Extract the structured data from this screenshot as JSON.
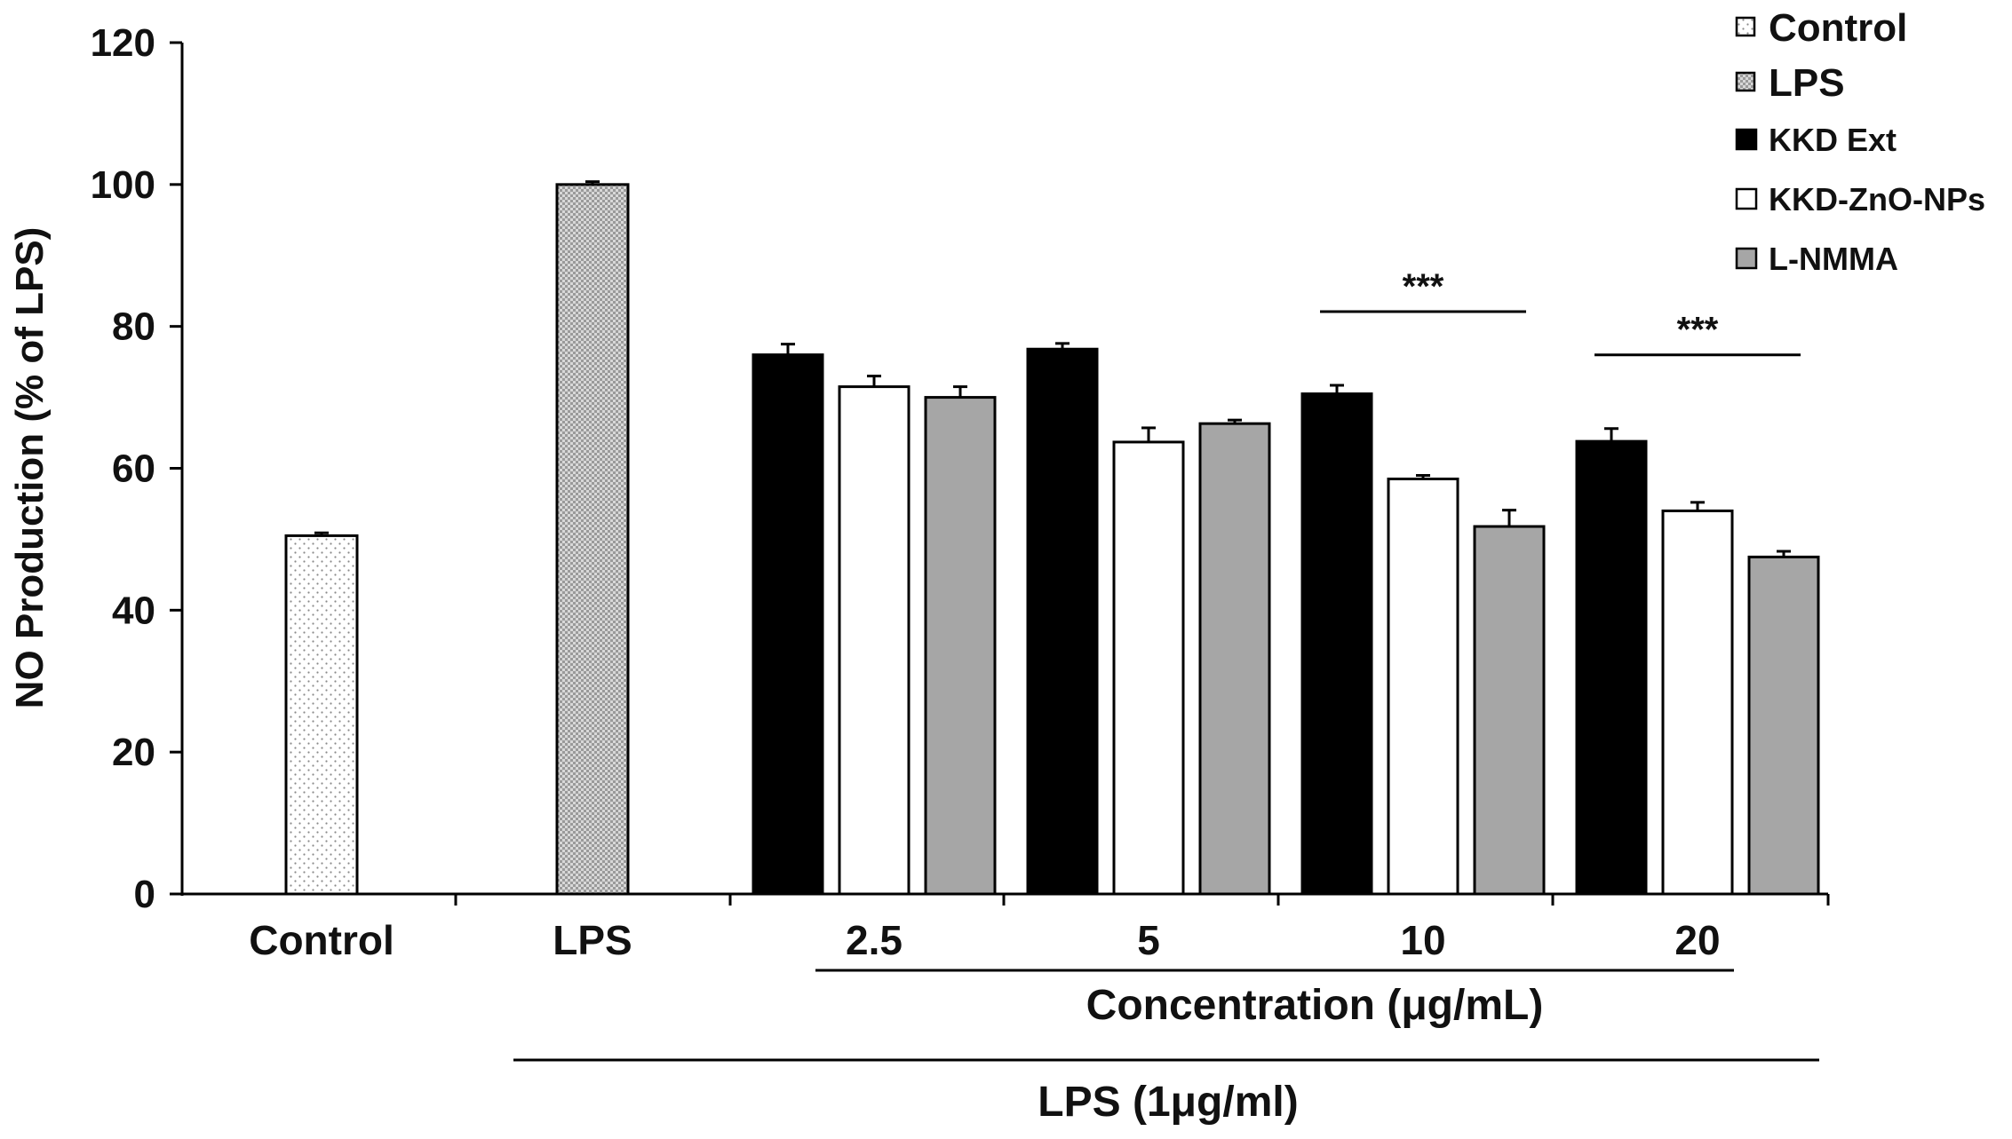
{
  "chart_data": {
    "type": "bar",
    "title": "",
    "ylabel": "NO Production (% of LPS)",
    "xlabel": "Concentration (μg/mL)",
    "group_label": "LPS (1μg/ml)",
    "ylim": [
      0,
      120
    ],
    "yticks": [
      0,
      20,
      40,
      60,
      80,
      100,
      120
    ],
    "grid": false,
    "legend_position": "top-right",
    "significance_marker": "***",
    "control_groups": [
      {
        "label": "Control",
        "value": 50.5,
        "error": 0.4,
        "series": "Control"
      },
      {
        "label": "LPS",
        "value": 100.0,
        "error": 0.4,
        "series": "LPS"
      }
    ],
    "categories": [
      "2.5",
      "5",
      "10",
      "20"
    ],
    "series": [
      {
        "name": "KKD Ext",
        "values": [
          76.0,
          76.8,
          70.5,
          63.8
        ],
        "errors": [
          1.5,
          0.8,
          1.2,
          1.8
        ]
      },
      {
        "name": "KKD-ZnO-NPs",
        "values": [
          71.5,
          63.7,
          58.5,
          54.0
        ],
        "errors": [
          1.5,
          2.0,
          0.5,
          1.2
        ]
      },
      {
        "name": "L-NMMA",
        "values": [
          70.0,
          66.3,
          51.8,
          47.5
        ],
        "errors": [
          1.5,
          0.5,
          2.3,
          0.8
        ]
      }
    ],
    "significance": [
      {
        "category": "10",
        "label": "***"
      },
      {
        "category": "20",
        "label": "***"
      }
    ],
    "legend": [
      "Control",
      "LPS",
      "KKD Ext",
      "KKD-ZnO-NPs",
      "L-NMMA"
    ]
  }
}
